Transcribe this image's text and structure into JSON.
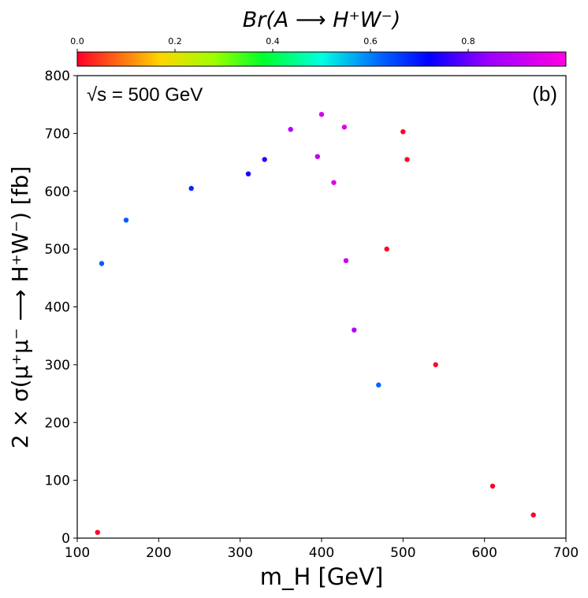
{
  "chart_data": {
    "type": "scatter",
    "panel_label": "(b)",
    "annotation": "√s = 500 GeV",
    "xlabel": "m_H [GeV]",
    "ylabel": "2 × σ(μ⁺μ⁻ ⟶ H⁺W⁻) [fb]",
    "xlim": [
      100,
      700
    ],
    "ylim": [
      0,
      800
    ],
    "xticks": [
      100,
      200,
      300,
      400,
      500,
      600,
      700
    ],
    "yticks": [
      0,
      100,
      200,
      300,
      400,
      500,
      600,
      700,
      800
    ],
    "grid": false,
    "colorbar": {
      "label": "Br(A ⟶ H⁺W⁻)",
      "range": [
        0.0,
        1.0
      ],
      "ticks": [
        0.0,
        0.2,
        0.4,
        0.6,
        0.8
      ],
      "tick_labels": [
        "0.0",
        "0.2",
        "0.4",
        "0.6",
        "0.8"
      ],
      "colormap": "gist_rainbow",
      "placement": "top"
    },
    "series": [
      {
        "points": [
          {
            "x": 400,
            "y": 733,
            "c": 0.93
          },
          {
            "x": 428,
            "y": 711,
            "c": 0.95
          },
          {
            "x": 362,
            "y": 707,
            "c": 0.88
          },
          {
            "x": 395,
            "y": 660,
            "c": 0.9
          },
          {
            "x": 330,
            "y": 655,
            "c": 0.75
          },
          {
            "x": 310,
            "y": 630,
            "c": 0.74
          },
          {
            "x": 240,
            "y": 605,
            "c": 0.68
          },
          {
            "x": 160,
            "y": 550,
            "c": 0.63
          },
          {
            "x": 130,
            "y": 475,
            "c": 0.63
          },
          {
            "x": 415,
            "y": 615,
            "c": 0.95
          },
          {
            "x": 430,
            "y": 480,
            "c": 0.92
          },
          {
            "x": 440,
            "y": 360,
            "c": 0.88
          },
          {
            "x": 470,
            "y": 265,
            "c": 0.62
          },
          {
            "x": 500,
            "y": 703,
            "c": 0.0
          },
          {
            "x": 505,
            "y": 655,
            "c": 0.0
          },
          {
            "x": 480,
            "y": 500,
            "c": 0.0
          },
          {
            "x": 540,
            "y": 300,
            "c": 0.0
          },
          {
            "x": 610,
            "y": 90,
            "c": 0.0
          },
          {
            "x": 660,
            "y": 40,
            "c": 0.0
          },
          {
            "x": 125,
            "y": 10,
            "c": 0.0
          }
        ]
      }
    ]
  }
}
